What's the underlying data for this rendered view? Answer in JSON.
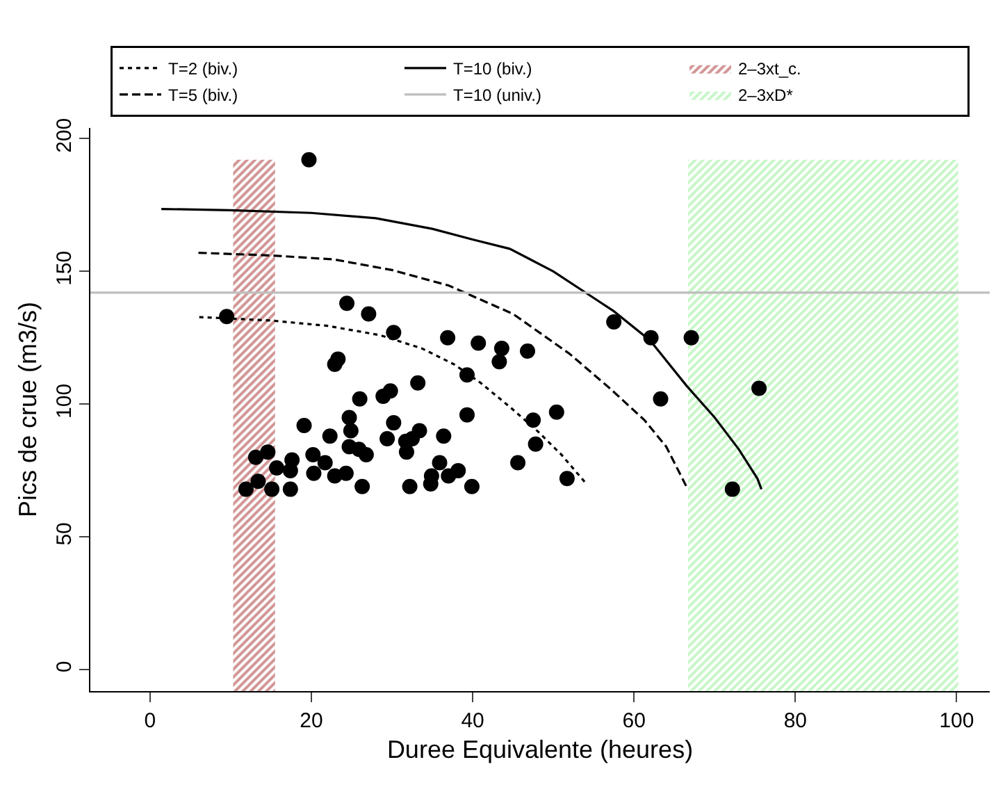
{
  "chart_data": {
    "type": "scatter",
    "xlabel": "Duree Equivalente (heures)",
    "ylabel": "Pics de crue (m3/s)",
    "xlim": [
      -7.4,
      104.1
    ],
    "xticks": [
      0,
      20,
      40,
      60,
      80,
      100
    ],
    "ylim": [
      -8,
      204
    ],
    "yticks": [
      0,
      50,
      100,
      150,
      200
    ],
    "legend": "top",
    "series": [
      {
        "color": "#000000",
        "marker": "circle",
        "x": [
          19.7,
          9.5,
          24.4,
          27.1,
          30.2,
          36.9,
          23.3,
          22.9,
          39.3,
          33.2,
          29.8,
          28.9,
          26.0,
          39.3,
          24.7,
          19.1,
          30.2,
          24.9,
          22.3,
          33.4,
          36.4,
          29.4,
          31.7,
          32.5,
          24.7,
          31.8,
          25.9,
          26.8,
          14.6,
          13.1,
          20.2,
          17.6,
          21.7,
          15.7,
          17.4,
          35.9,
          20.3,
          22.9,
          24.3,
          13.4,
          11.9,
          15.1,
          17.4,
          26.3,
          32.2,
          34.9,
          37.0,
          38.2,
          34.8,
          39.9,
          57.5,
          62.1,
          67.1,
          40.7,
          43.6,
          43.3,
          46.8,
          63.3,
          50.4,
          47.5,
          47.8,
          45.6,
          51.7,
          75.5,
          72.2
        ],
        "values": [
          192,
          133,
          138,
          134,
          127,
          125,
          117,
          115,
          111,
          108,
          105,
          103,
          102,
          96,
          95,
          92,
          93,
          90,
          88,
          90,
          88,
          87,
          86,
          87,
          84,
          82,
          83,
          81,
          82,
          80,
          81,
          79,
          78,
          76,
          75,
          78,
          74,
          73,
          74,
          71,
          68,
          68,
          68,
          69,
          69,
          73,
          73,
          75,
          70,
          69,
          131,
          125,
          125,
          123,
          121,
          116,
          120,
          102,
          97,
          94,
          85,
          78,
          72,
          106,
          68
        ]
      },
      {
        "type": "line",
        "name": "T=2 (biv.)",
        "color": "#000000",
        "line_style": "dotted",
        "marker": "none",
        "x": [
          6.1,
          15,
          22,
          28.5,
          33.7,
          37.7,
          41,
          44.6,
          48,
          51,
          54.1
        ],
        "values": [
          132.8,
          131.5,
          129.5,
          126,
          121,
          115,
          108,
          99,
          90,
          81,
          70
        ]
      },
      {
        "type": "line",
        "name": "T=5 (biv.)",
        "color": "#000000",
        "line_style": "dashed",
        "marker": "none",
        "x": [
          6,
          15,
          22.8,
          30,
          37,
          45,
          52,
          57,
          61.3,
          64,
          66.5
        ],
        "values": [
          157,
          156,
          154.5,
          150.5,
          144.7,
          134,
          119,
          106,
          94,
          84,
          69
        ]
      },
      {
        "type": "line",
        "name": "T=10 (biv.)",
        "color": "#000000",
        "line_style": "solid",
        "marker": "none",
        "x": [
          1.4,
          10,
          20,
          28,
          35,
          40,
          44.6,
          50,
          55,
          57.5,
          62,
          66.5,
          70,
          73,
          75.3,
          75.8
        ],
        "values": [
          173.5,
          173,
          172,
          170,
          166,
          162,
          158.5,
          150,
          140,
          135,
          124,
          107,
          95,
          83,
          72,
          68
        ]
      },
      {
        "type": "line",
        "name": "T=10 (univ.)",
        "color": "#bebebe",
        "line_style": "solid",
        "marker": "none",
        "x": [
          -7.4,
          104.1
        ],
        "values": [
          142,
          142
        ]
      }
    ],
    "bands": [
      {
        "axis": "x",
        "from": 10.3,
        "to": 15.5,
        "label": "2–3xt_c.",
        "color": "#a52a2a"
      },
      {
        "axis": "x",
        "from": 66.7,
        "to": 100.2,
        "label": "2–3xD*",
        "color": "#90ee90"
      }
    ]
  }
}
